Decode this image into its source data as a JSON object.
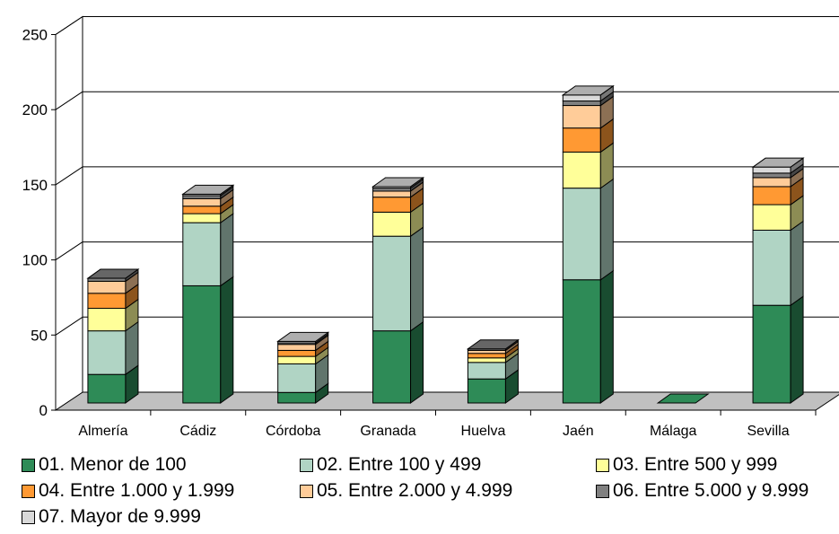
{
  "chart_data": {
    "type": "bar",
    "stacked": true,
    "three_d": true,
    "title": "",
    "xlabel": "",
    "ylabel": "",
    "ylim": [
      0,
      250
    ],
    "yticks": [
      0,
      50,
      100,
      150,
      200,
      250
    ],
    "grid": true,
    "legend_position": "bottom",
    "categories": [
      "Almería",
      "Cádiz",
      "Córdoba",
      "Granada",
      "Huelva",
      "Jaén",
      "Málaga",
      "Sevilla"
    ],
    "series": [
      {
        "name": "01. Menor de 100",
        "color": "#2e8b57",
        "values": [
          19,
          78,
          7,
          48,
          16,
          82,
          0,
          65
        ]
      },
      {
        "name": "02. Entre 100 y 499",
        "color": "#b0d4c4",
        "values": [
          29,
          42,
          19,
          63,
          11,
          61,
          0,
          50
        ]
      },
      {
        "name": "03. Entre 500 y 999",
        "color": "#ffff99",
        "values": [
          15,
          6,
          5,
          16,
          3,
          24,
          0,
          17
        ]
      },
      {
        "name": "04. Entre 1.000 y 1.999",
        "color": "#ff9933",
        "values": [
          10,
          5,
          4,
          10,
          3,
          16,
          0,
          12
        ]
      },
      {
        "name": "05. Entre 2.000 y 4.999",
        "color": "#ffcc99",
        "values": [
          8,
          5,
          4,
          4,
          2,
          15,
          0,
          6
        ]
      },
      {
        "name": "06. Entre 5.000 y 9.999",
        "color": "#808080",
        "values": [
          2,
          2,
          1,
          2,
          1,
          3,
          0,
          3
        ]
      },
      {
        "name": "07. Mayor de  9.999",
        "color": "#d9d9d9",
        "values": [
          0,
          1,
          1,
          1,
          0,
          4,
          0,
          4
        ]
      }
    ]
  }
}
